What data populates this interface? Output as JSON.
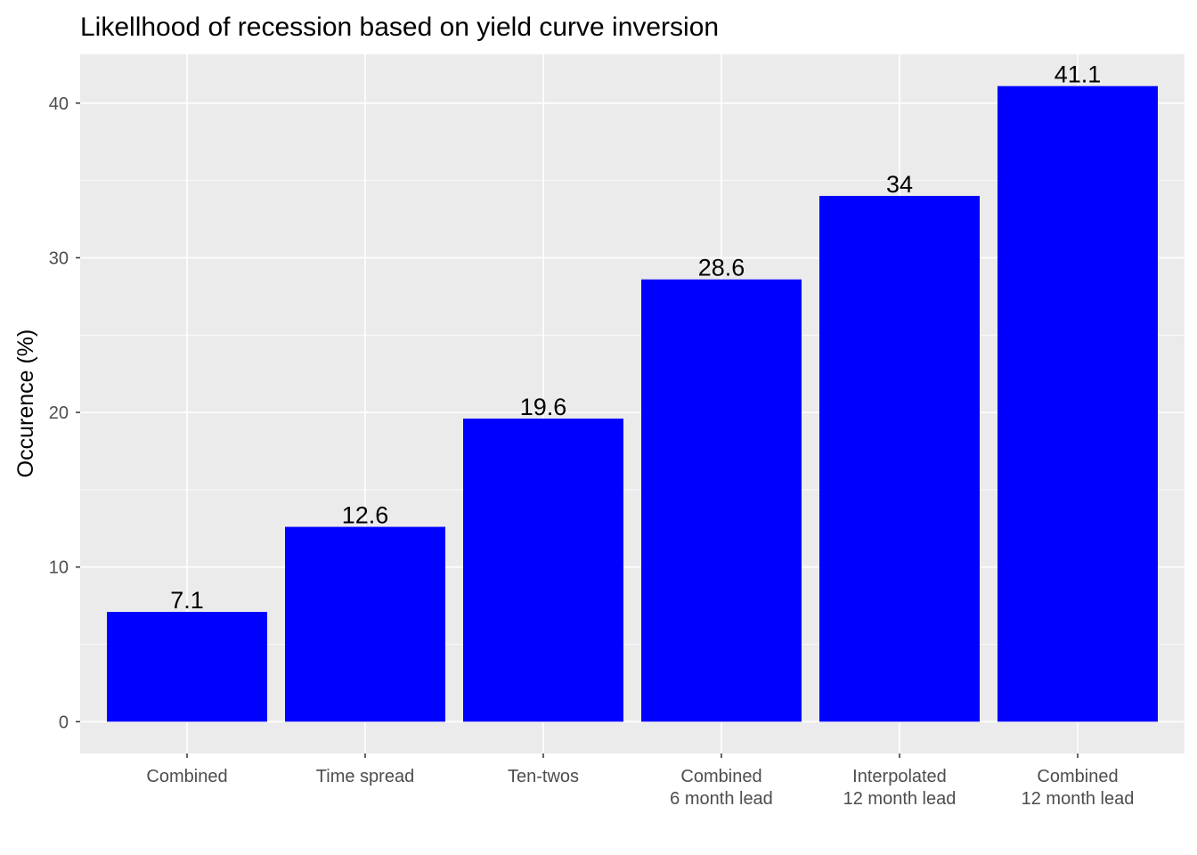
{
  "chart_data": {
    "type": "bar",
    "title": "Likellhood of recession based on yield curve inversion",
    "xlabel": "",
    "ylabel": "Occurence (%)",
    "categories": [
      [
        "Combined"
      ],
      [
        "Time spread"
      ],
      [
        "Ten-twos"
      ],
      [
        "Combined",
        "6 month lead"
      ],
      [
        "Interpolated",
        "12 month lead"
      ],
      [
        "Combined",
        "12 month lead"
      ]
    ],
    "values": [
      7.1,
      12.6,
      19.6,
      28.6,
      34,
      41.1
    ],
    "data_labels": [
      "7.1",
      "12.6",
      "19.6",
      "28.6",
      "34",
      "41.1"
    ],
    "ylim": [
      -2.055,
      43.155
    ],
    "yticks": [
      0,
      10,
      20,
      30,
      40
    ],
    "grid": true,
    "legend": "none",
    "colors": {
      "bar": "#0000ff",
      "panel": "#ebebeb",
      "grid_major": "#ffffff",
      "tick_text": "#4d4d4d",
      "tick_mark": "#333333"
    }
  }
}
